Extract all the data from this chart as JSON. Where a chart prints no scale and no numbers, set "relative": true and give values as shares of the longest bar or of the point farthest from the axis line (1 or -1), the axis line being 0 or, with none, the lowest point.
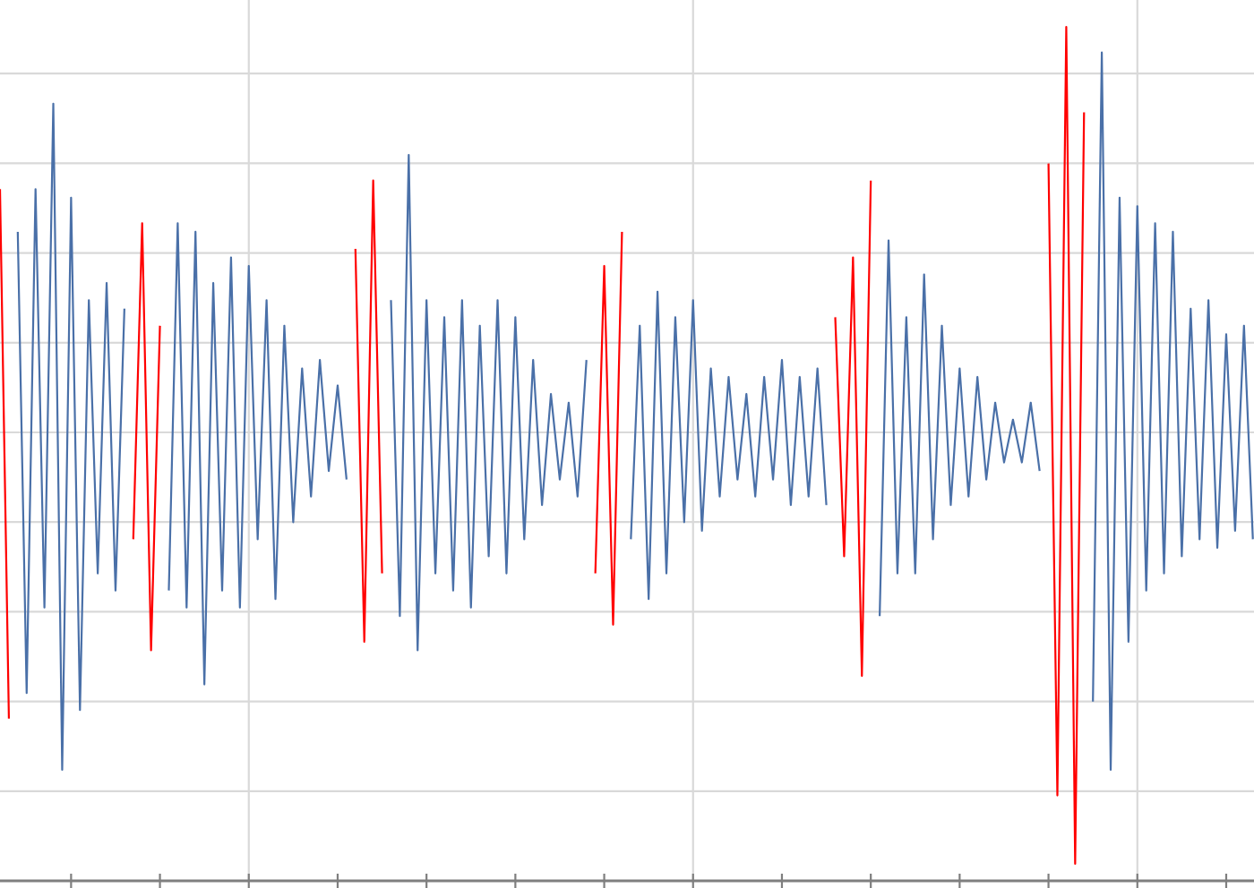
{
  "chart_data": {
    "type": "line",
    "relative": true,
    "grid": true,
    "categories": [
      null,
      null,
      null,
      null,
      null,
      null,
      null,
      null,
      null,
      null,
      null,
      null,
      null,
      null,
      null,
      null,
      null,
      null,
      null,
      null,
      null,
      null,
      null,
      null,
      null,
      null,
      null,
      null,
      null,
      null,
      null,
      null,
      null,
      null,
      null,
      null,
      null,
      null,
      null,
      null,
      null,
      null,
      null,
      null,
      null,
      null,
      null,
      null,
      null,
      null,
      null,
      null,
      null,
      null,
      null,
      null,
      null,
      null,
      null,
      null,
      null,
      null,
      null,
      null,
      null,
      null,
      null,
      null,
      null,
      null,
      null,
      null,
      null,
      null,
      null,
      null,
      null,
      null,
      null,
      null,
      null,
      null,
      null,
      null,
      null,
      null,
      null,
      null,
      null,
      null,
      null,
      null,
      null,
      null,
      null,
      null,
      null,
      null,
      null,
      null,
      null,
      null,
      null,
      null,
      null,
      null,
      null,
      null,
      null,
      null,
      null,
      null,
      null,
      null,
      null,
      null,
      null,
      null,
      null,
      null,
      null,
      null,
      null,
      null,
      null,
      null,
      null,
      null,
      null,
      null,
      null,
      null,
      null,
      null,
      null,
      null,
      null,
      null,
      null,
      null,
      null,
      null
    ],
    "series": [
      {
        "color": "#4a70a8",
        "values": [
          null,
          null,
          0.76,
          0.22,
          0.81,
          0.32,
          0.91,
          0.13,
          0.8,
          0.2,
          0.68,
          0.36,
          0.7,
          0.34,
          0.67,
          null,
          null,
          null,
          null,
          null,
          null,
          null,
          null,
          null,
          null,
          null,
          null,
          null,
          null,
          null,
          null,
          null,
          null,
          null,
          null,
          null,
          null,
          null,
          null,
          null,
          null,
          null,
          null,
          null,
          null,
          null,
          null,
          null,
          null,
          null,
          null,
          null,
          null,
          null,
          null,
          null,
          null,
          null,
          null,
          null,
          null,
          null,
          null,
          null,
          null,
          null,
          null,
          null,
          null,
          null,
          null,
          null,
          null,
          null,
          null,
          null,
          null,
          null,
          null,
          null,
          null,
          null,
          null,
          null,
          null,
          null,
          null,
          null,
          null,
          null,
          null,
          null,
          null,
          null,
          null,
          null,
          null,
          null,
          null,
          null,
          null,
          null,
          null,
          null,
          null,
          null,
          null,
          null,
          null,
          null,
          null,
          null,
          null,
          null,
          null,
          null,
          null,
          null,
          null,
          null,
          null,
          null,
          null,
          null,
          null,
          null,
          null,
          null,
          null,
          null,
          null,
          null,
          null,
          null,
          null,
          null,
          null,
          null,
          null,
          null,
          null,
          null
        ]
      },
      {
        "color": "#4a70a8",
        "values": [
          null,
          null,
          null,
          null,
          null,
          null,
          null,
          null,
          null,
          null,
          null,
          null,
          null,
          null,
          null,
          null,
          null,
          null,
          null,
          0.34,
          0.77,
          0.32,
          0.76,
          0.23,
          0.7,
          0.34,
          0.73,
          0.32,
          0.72,
          0.4,
          0.68,
          0.33,
          0.65,
          0.42,
          0.6,
          0.45,
          0.61,
          0.48,
          0.58,
          0.47,
          null,
          null,
          null,
          null,
          null,
          null,
          null,
          null,
          null,
          null,
          null,
          null,
          null,
          null,
          null,
          null,
          null,
          null,
          null,
          null,
          null,
          null,
          null,
          null,
          null,
          null,
          null,
          null,
          null,
          null,
          null,
          null,
          null,
          null,
          null,
          null,
          null,
          null,
          null,
          null,
          null,
          null,
          null,
          null,
          null,
          null,
          null,
          null,
          null,
          null,
          null,
          null,
          null,
          null,
          null,
          null,
          null,
          null,
          null,
          null,
          null,
          null,
          null,
          null,
          null,
          null,
          null,
          null,
          null,
          null,
          null,
          null,
          null,
          null,
          null,
          null,
          null,
          null,
          null,
          null,
          null,
          null,
          null,
          null,
          null,
          null,
          null,
          null,
          null,
          null,
          null,
          null,
          null,
          null,
          null,
          null,
          null,
          null,
          null,
          null,
          null,
          null
        ]
      },
      {
        "color": "#4a70a8",
        "values": [
          null,
          null,
          null,
          null,
          null,
          null,
          null,
          null,
          null,
          null,
          null,
          null,
          null,
          null,
          null,
          null,
          null,
          null,
          null,
          null,
          null,
          null,
          null,
          null,
          null,
          null,
          null,
          null,
          null,
          null,
          null,
          null,
          null,
          null,
          null,
          null,
          null,
          null,
          null,
          null,
          null,
          null,
          null,
          null,
          0.68,
          0.31,
          0.85,
          0.27,
          0.68,
          0.36,
          0.66,
          0.34,
          0.68,
          0.32,
          0.65,
          0.38,
          0.68,
          0.36,
          0.66,
          0.4,
          0.61,
          0.44,
          0.57,
          0.47,
          0.56,
          0.45,
          0.61,
          null,
          null,
          null,
          null,
          null,
          null,
          null,
          null,
          null,
          null,
          null,
          null,
          null,
          null,
          null,
          null,
          null,
          null,
          null,
          null,
          null,
          null,
          null,
          null,
          null,
          null,
          null,
          null,
          null,
          null,
          null,
          null,
          null,
          null,
          null,
          null,
          null,
          null,
          null,
          null,
          null,
          null,
          null,
          null,
          null,
          null,
          null,
          null,
          null,
          null,
          null,
          null,
          null,
          null,
          null,
          null,
          null,
          null,
          null,
          null,
          null,
          null,
          null,
          null,
          null,
          null,
          null,
          null,
          null,
          null,
          null,
          null,
          null,
          null,
          null
        ]
      },
      {
        "color": "#4a70a8",
        "values": [
          null,
          null,
          null,
          null,
          null,
          null,
          null,
          null,
          null,
          null,
          null,
          null,
          null,
          null,
          null,
          null,
          null,
          null,
          null,
          null,
          null,
          null,
          null,
          null,
          null,
          null,
          null,
          null,
          null,
          null,
          null,
          null,
          null,
          null,
          null,
          null,
          null,
          null,
          null,
          null,
          null,
          null,
          null,
          null,
          null,
          null,
          null,
          null,
          null,
          null,
          null,
          null,
          null,
          null,
          null,
          null,
          null,
          null,
          null,
          null,
          null,
          null,
          null,
          null,
          null,
          null,
          null,
          null,
          null,
          null,
          null,
          0.4,
          0.65,
          0.33,
          0.69,
          0.36,
          0.66,
          0.42,
          0.68,
          0.41,
          0.6,
          0.45,
          0.59,
          0.47,
          0.57,
          0.45,
          0.59,
          0.47,
          0.61,
          0.44,
          0.59,
          0.45,
          0.6,
          0.44,
          null,
          null,
          null,
          null,
          null,
          null,
          null,
          null,
          null,
          null,
          null,
          null,
          null,
          null,
          null,
          null,
          null,
          null,
          null,
          null,
          null,
          null,
          null,
          null,
          null,
          null,
          null,
          null,
          null,
          null,
          null,
          null,
          null,
          null,
          null,
          null,
          null,
          null,
          null,
          null,
          null,
          null,
          null,
          null,
          null,
          null,
          null,
          null
        ]
      },
      {
        "color": "#4a70a8",
        "values": [
          null,
          null,
          null,
          null,
          null,
          null,
          null,
          null,
          null,
          null,
          null,
          null,
          null,
          null,
          null,
          null,
          null,
          null,
          null,
          null,
          null,
          null,
          null,
          null,
          null,
          null,
          null,
          null,
          null,
          null,
          null,
          null,
          null,
          null,
          null,
          null,
          null,
          null,
          null,
          null,
          null,
          null,
          null,
          null,
          null,
          null,
          null,
          null,
          null,
          null,
          null,
          null,
          null,
          null,
          null,
          null,
          null,
          null,
          null,
          null,
          null,
          null,
          null,
          null,
          null,
          null,
          null,
          null,
          null,
          null,
          null,
          null,
          null,
          null,
          null,
          null,
          null,
          null,
          null,
          null,
          null,
          null,
          null,
          null,
          null,
          null,
          null,
          null,
          null,
          null,
          null,
          null,
          null,
          null,
          null,
          null,
          null,
          null,
          null,
          0.31,
          0.75,
          0.36,
          0.66,
          0.36,
          0.71,
          0.4,
          0.65,
          0.44,
          0.6,
          0.45,
          0.59,
          0.47,
          0.56,
          0.49,
          0.54,
          0.49,
          0.56,
          0.48,
          null,
          null,
          null,
          null,
          null,
          null,
          null,
          null,
          null,
          null,
          null,
          null,
          null,
          null,
          null,
          null,
          null,
          null,
          null,
          null,
          null,
          null,
          null,
          null
        ]
      },
      {
        "color": "#4a70a8",
        "values": [
          null,
          null,
          null,
          null,
          null,
          null,
          null,
          null,
          null,
          null,
          null,
          null,
          null,
          null,
          null,
          null,
          null,
          null,
          null,
          null,
          null,
          null,
          null,
          null,
          null,
          null,
          null,
          null,
          null,
          null,
          null,
          null,
          null,
          null,
          null,
          null,
          null,
          null,
          null,
          null,
          null,
          null,
          null,
          null,
          null,
          null,
          null,
          null,
          null,
          null,
          null,
          null,
          null,
          null,
          null,
          null,
          null,
          null,
          null,
          null,
          null,
          null,
          null,
          null,
          null,
          null,
          null,
          null,
          null,
          null,
          null,
          null,
          null,
          null,
          null,
          null,
          null,
          null,
          null,
          null,
          null,
          null,
          null,
          null,
          null,
          null,
          null,
          null,
          null,
          null,
          null,
          null,
          null,
          null,
          null,
          null,
          null,
          null,
          null,
          null,
          null,
          null,
          null,
          null,
          null,
          null,
          null,
          null,
          null,
          null,
          null,
          null,
          null,
          null,
          null,
          null,
          null,
          null,
          null,
          null,
          null,
          null,
          null,
          0.21,
          0.97,
          0.13,
          0.8,
          0.28,
          0.79,
          0.34,
          0.77,
          0.36,
          0.76,
          0.38,
          0.67,
          0.4,
          0.68,
          0.39,
          0.64,
          0.41,
          0.65,
          0.4
        ]
      },
      {
        "color": "#ff0000",
        "values": [
          0.81,
          0.19,
          null,
          null,
          null,
          null,
          null,
          null,
          null,
          null,
          null,
          null,
          null,
          null,
          null,
          0.4,
          0.77,
          0.27,
          0.65,
          null,
          null,
          null,
          null,
          null,
          null,
          null,
          null,
          null,
          null,
          null,
          null,
          null,
          null,
          null,
          null,
          null,
          null,
          null,
          null,
          null,
          0.74,
          0.28,
          0.82,
          0.36,
          null,
          null,
          null,
          null,
          null,
          null,
          null,
          null,
          null,
          null,
          null,
          null,
          null,
          null,
          null,
          null,
          null,
          null,
          null,
          null,
          null,
          null,
          null,
          0.36,
          0.72,
          0.3,
          0.76,
          null,
          null,
          null,
          null,
          null,
          null,
          null,
          null,
          null,
          null,
          null,
          null,
          null,
          null,
          null,
          null,
          null,
          null,
          null,
          null,
          null,
          null,
          null,
          0.66,
          0.38,
          0.73,
          0.24,
          0.82,
          null,
          null,
          null,
          null,
          null,
          null,
          null,
          null,
          null,
          null,
          null,
          null,
          null,
          null,
          null,
          null,
          null,
          null,
          null,
          0.84,
          0.1,
          1.0,
          0.02,
          0.9,
          null,
          null,
          null,
          null,
          null,
          null,
          null,
          null,
          null,
          null,
          null,
          null,
          null,
          null,
          null,
          null,
          null,
          null,
          null
        ]
      }
    ]
  }
}
